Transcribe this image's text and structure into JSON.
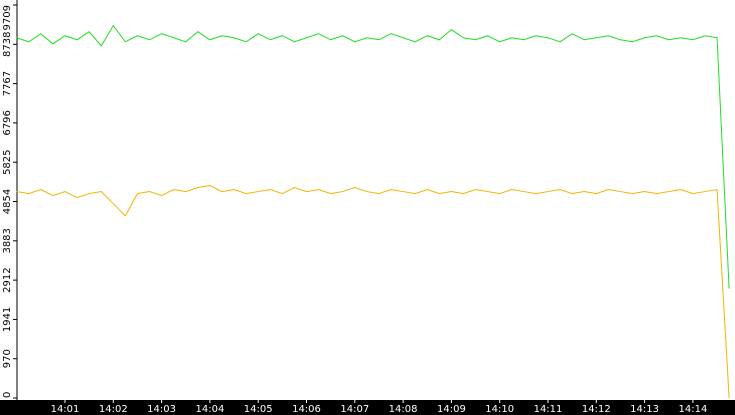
{
  "chart_data": {
    "type": "line",
    "categories": [
      null,
      null,
      null,
      null,
      "14:01",
      null,
      null,
      null,
      "14:02",
      null,
      null,
      null,
      "14:03",
      null,
      null,
      null,
      "14:04",
      null,
      null,
      null,
      "14:05",
      null,
      null,
      null,
      "14:06",
      null,
      null,
      null,
      "14:07",
      null,
      null,
      null,
      "14:08",
      null,
      null,
      null,
      "14:09",
      null,
      null,
      null,
      "14:10",
      null,
      null,
      null,
      "14:11",
      null,
      null,
      null,
      "14:12",
      null,
      null,
      null,
      "14:13",
      null,
      null,
      null,
      "14:14",
      null,
      null,
      null
    ],
    "series": [
      {
        "color": "#22dd22",
        "values": [
          8900,
          8800,
          9000,
          8750,
          8950,
          8850,
          9050,
          8700,
          9200,
          8800,
          8950,
          8850,
          9000,
          8900,
          8800,
          9050,
          8850,
          8950,
          8900,
          8800,
          9000,
          8850,
          8950,
          8800,
          8900,
          9000,
          8850,
          8950,
          8800,
          8900,
          8850,
          9000,
          8900,
          8800,
          8950,
          8850,
          9100,
          8900,
          8850,
          8950,
          8800,
          8900,
          8850,
          8950,
          8900,
          8800,
          9000,
          8850,
          8900,
          8950,
          8850,
          8800,
          8900,
          8950,
          8850,
          8900,
          8850,
          8950,
          8900,
          2700
        ]
      },
      {
        "color": "#f0b400",
        "values": [
          5100,
          5050,
          5150,
          5000,
          5100,
          4950,
          5050,
          5100,
          4800,
          4500,
          5050,
          5100,
          5000,
          5150,
          5100,
          5200,
          5250,
          5100,
          5150,
          5050,
          5100,
          5150,
          5050,
          5200,
          5100,
          5150,
          5050,
          5100,
          5200,
          5100,
          5050,
          5150,
          5100,
          5050,
          5150,
          5050,
          5100,
          5050,
          5150,
          5100,
          5050,
          5150,
          5100,
          5050,
          5100,
          5150,
          5050,
          5100,
          5050,
          5150,
          5100,
          5050,
          5100,
          5050,
          5100,
          5150,
          5050,
          5100,
          5150,
          0
        ]
      }
    ],
    "ylim": [
      0,
      9709
    ],
    "yticks": [
      0,
      970,
      1941,
      2912,
      3883,
      4854,
      5825,
      6796,
      7767,
      8738,
      9709
    ]
  }
}
